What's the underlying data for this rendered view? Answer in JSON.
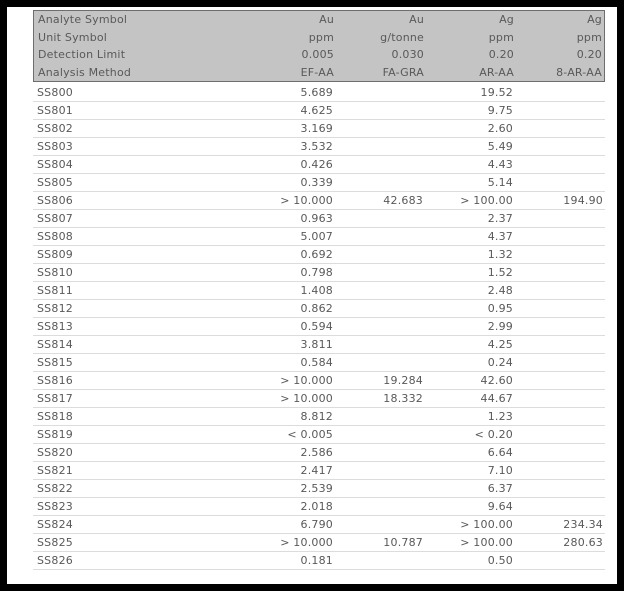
{
  "table": {
    "header_rows": [
      {
        "label": "Analyte Symbol",
        "values": [
          "Au",
          "Au",
          "Ag",
          "Ag"
        ]
      },
      {
        "label": "Unit Symbol",
        "values": [
          "ppm",
          "g/tonne",
          "ppm",
          "ppm"
        ]
      },
      {
        "label": "Detection Limit",
        "values": [
          "0.005",
          "0.030",
          "0.20",
          "0.20"
        ]
      },
      {
        "label": "Analysis Method",
        "values": [
          "EF-AA",
          "FA-GRA",
          "AR-AA",
          "8-AR-AA"
        ]
      }
    ],
    "rows": [
      {
        "sample": "SS800",
        "values": [
          "5.689",
          "",
          "19.52",
          ""
        ]
      },
      {
        "sample": "SS801",
        "values": [
          "4.625",
          "",
          "9.75",
          ""
        ]
      },
      {
        "sample": "SS802",
        "values": [
          "3.169",
          "",
          "2.60",
          ""
        ]
      },
      {
        "sample": "SS803",
        "values": [
          "3.532",
          "",
          "5.49",
          ""
        ]
      },
      {
        "sample": "SS804",
        "values": [
          "0.426",
          "",
          "4.43",
          ""
        ]
      },
      {
        "sample": "SS805",
        "values": [
          "0.339",
          "",
          "5.14",
          ""
        ]
      },
      {
        "sample": "SS806",
        "values": [
          "> 10.000",
          "42.683",
          "> 100.00",
          "194.90"
        ]
      },
      {
        "sample": "SS807",
        "values": [
          "0.963",
          "",
          "2.37",
          ""
        ]
      },
      {
        "sample": "SS808",
        "values": [
          "5.007",
          "",
          "4.37",
          ""
        ]
      },
      {
        "sample": "SS809",
        "values": [
          "0.692",
          "",
          "1.32",
          ""
        ]
      },
      {
        "sample": "SS810",
        "values": [
          "0.798",
          "",
          "1.52",
          ""
        ]
      },
      {
        "sample": "SS811",
        "values": [
          "1.408",
          "",
          "2.48",
          ""
        ]
      },
      {
        "sample": "SS812",
        "values": [
          "0.862",
          "",
          "0.95",
          ""
        ]
      },
      {
        "sample": "SS813",
        "values": [
          "0.594",
          "",
          "2.99",
          ""
        ]
      },
      {
        "sample": "SS814",
        "values": [
          "3.811",
          "",
          "4.25",
          ""
        ]
      },
      {
        "sample": "SS815",
        "values": [
          "0.584",
          "",
          "0.24",
          ""
        ]
      },
      {
        "sample": "SS816",
        "values": [
          "> 10.000",
          "19.284",
          "42.60",
          ""
        ]
      },
      {
        "sample": "SS817",
        "values": [
          "> 10.000",
          "18.332",
          "44.67",
          ""
        ]
      },
      {
        "sample": "SS818",
        "values": [
          "8.812",
          "",
          "1.23",
          ""
        ]
      },
      {
        "sample": "SS819",
        "values": [
          "< 0.005",
          "",
          "< 0.20",
          ""
        ]
      },
      {
        "sample": "SS820",
        "values": [
          "2.586",
          "",
          "6.64",
          ""
        ]
      },
      {
        "sample": "SS821",
        "values": [
          "2.417",
          "",
          "7.10",
          ""
        ]
      },
      {
        "sample": "SS822",
        "values": [
          "2.539",
          "",
          "6.37",
          ""
        ]
      },
      {
        "sample": "SS823",
        "values": [
          "2.018",
          "",
          "9.64",
          ""
        ]
      },
      {
        "sample": "SS824",
        "values": [
          "6.790",
          "",
          "> 100.00",
          "234.34"
        ]
      },
      {
        "sample": "SS825",
        "values": [
          "> 10.000",
          "10.787",
          "> 100.00",
          "280.63"
        ]
      },
      {
        "sample": "SS826",
        "values": [
          "0.181",
          "",
          "0.50",
          ""
        ]
      }
    ]
  },
  "colors": {
    "frame": "#000000",
    "header_bg": "#c4c4c4",
    "header_border": "#6e6e6e",
    "text": "#595959",
    "row_line": "#dcdcdc"
  }
}
